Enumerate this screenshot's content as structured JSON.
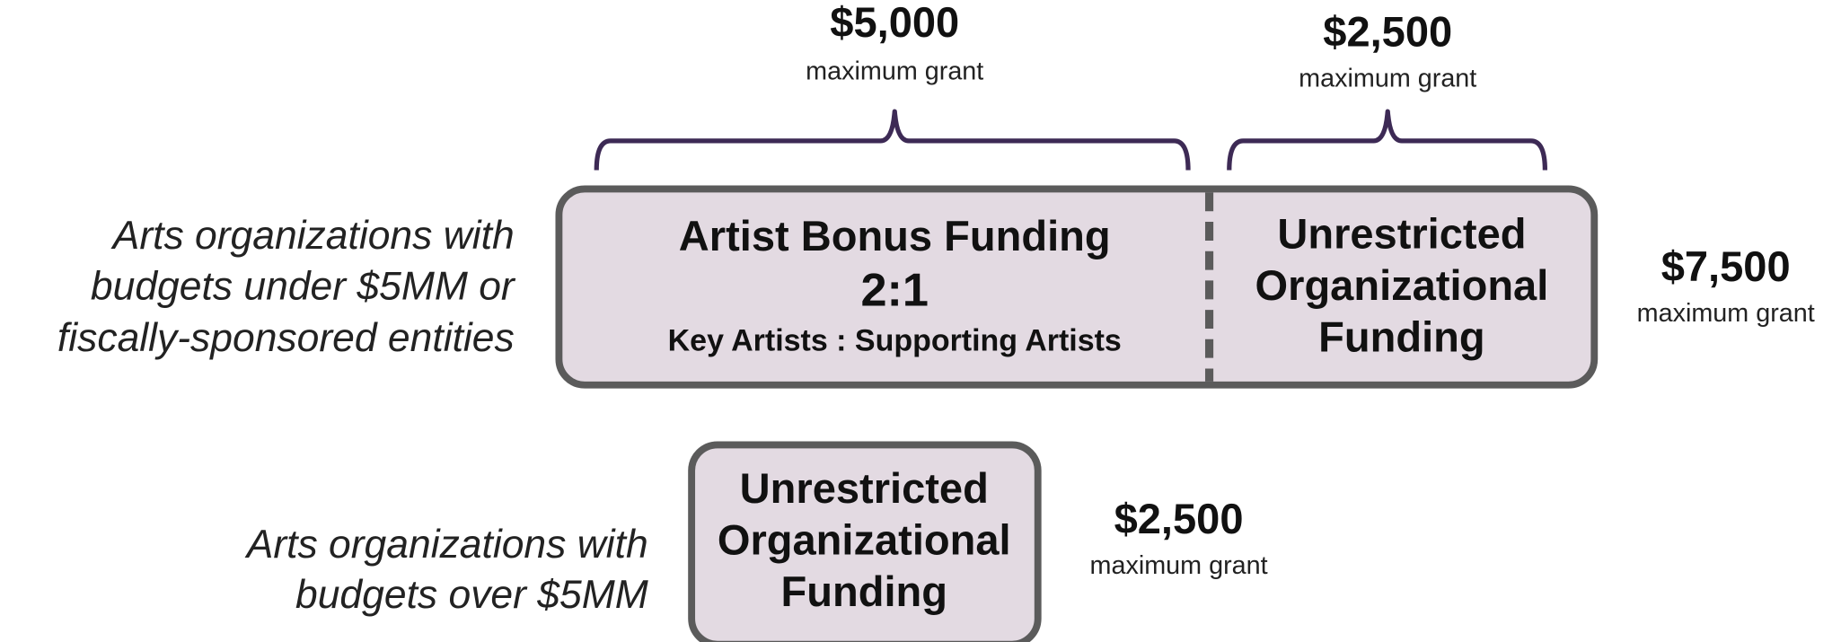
{
  "rows": [
    {
      "label": [
        "Arts organizations with",
        "budgets under $5MM or",
        "fiscally-sponsored entities"
      ],
      "segments": [
        {
          "title": [
            "Artist Bonus Funding"
          ],
          "ratio": "2:1",
          "ratio_label": "Key Artists : Supporting Artists",
          "amount": "$5,000",
          "amount_note": "maximum grant"
        },
        {
          "title": [
            "Unrestricted",
            "Organizational",
            "Funding"
          ],
          "amount": "$2,500",
          "amount_note": "maximum grant"
        }
      ],
      "total": "$7,500",
      "total_note": "maximum grant"
    },
    {
      "label": [
        "Arts organizations with",
        "budgets over $5MM"
      ],
      "segments": [
        {
          "title": [
            "Unrestricted",
            "Organizational",
            "Funding"
          ]
        }
      ],
      "total": "$2,500",
      "total_note": "maximum grant"
    }
  ]
}
